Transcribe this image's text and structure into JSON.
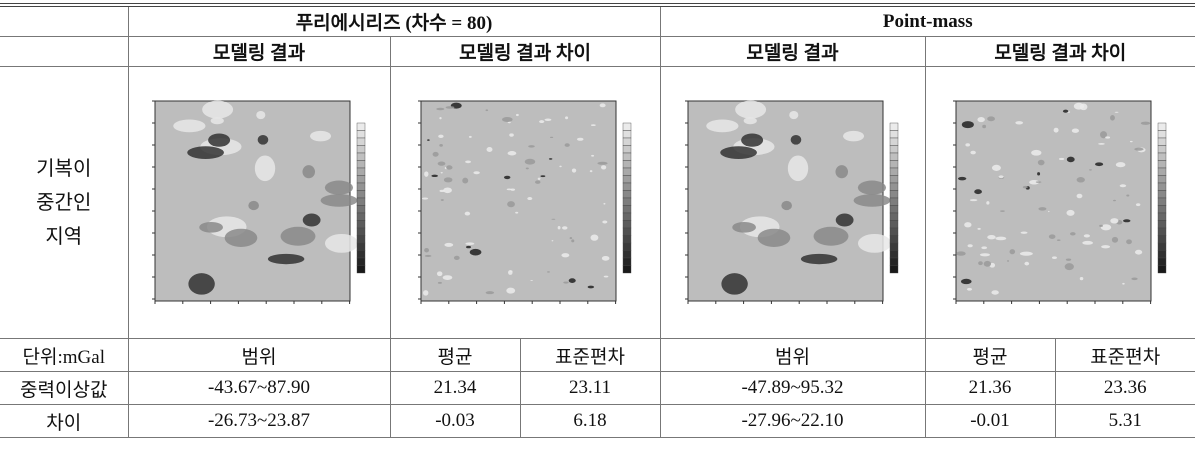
{
  "header": {
    "group_fourier": "푸리에시리즈 (차수 = 80)",
    "group_pointmass": "Point-mass",
    "subheaders": [
      "모델링 결과",
      "모델링 결과 차이",
      "모델링 결과",
      "모델링 결과 차이"
    ]
  },
  "row_label": [
    "기복이",
    "중간인",
    "지역"
  ],
  "table": {
    "columns": [
      "단위:mGal",
      "범위",
      "평균",
      "표준편차",
      "범위",
      "평균",
      "표준편차"
    ],
    "rows": [
      [
        "중력이상값",
        "-43.67~87.90",
        "21.34",
        "23.11",
        "-47.89~95.32",
        "21.36",
        "23.36"
      ],
      [
        "차이",
        "-26.73~23.87",
        "-0.03",
        "6.18",
        "-27.96~22.10",
        "-0.01",
        "5.31"
      ]
    ]
  }
}
